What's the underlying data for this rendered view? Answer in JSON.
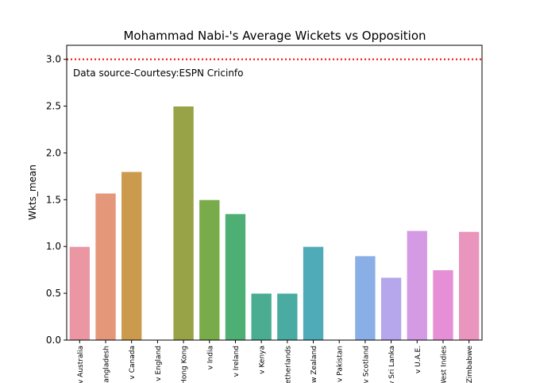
{
  "chart_data": {
    "type": "bar",
    "title": "Mohammad Nabi-'s Average Wickets vs Opposition",
    "xlabel": "",
    "ylabel": "Wkts_mean",
    "ylim": [
      0,
      3.15
    ],
    "yticks": [
      "0.0",
      "0.5",
      "1.0",
      "1.5",
      "2.0",
      "2.5",
      "3.0"
    ],
    "categories": [
      "v Australia",
      "v Bangladesh",
      "v Canada",
      "v England",
      "v Hong Kong",
      "v India",
      "v Ireland",
      "v Kenya",
      "v Netherlands",
      "v New Zealand",
      "v Pakistan",
      "v Scotland",
      "v Sri Lanka",
      "v U.A.E.",
      "v West Indies",
      "v Zimbabwe"
    ],
    "values": [
      1.0,
      1.57,
      1.8,
      0,
      2.5,
      1.5,
      1.35,
      0.5,
      0.5,
      1.0,
      0,
      0.9,
      0.67,
      1.17,
      0.75,
      1.16
    ],
    "colors": [
      "#ea96a3",
      "#e5977a",
      "#cc9a4c",
      "#b39f42",
      "#98a246",
      "#7aab4b",
      "#4daf74",
      "#4aad92",
      "#4aaba3",
      "#4fabb7",
      "#5fa9d6",
      "#8aaee6",
      "#b6a6ec",
      "#d59ae4",
      "#e78fd6",
      "#e995bd"
    ],
    "reference_line": {
      "value": 3.0,
      "color": "#ff0000",
      "style": "dotted"
    },
    "annotation": "Data source-Courtesy:ESPN Cricinfo",
    "grid": false
  }
}
